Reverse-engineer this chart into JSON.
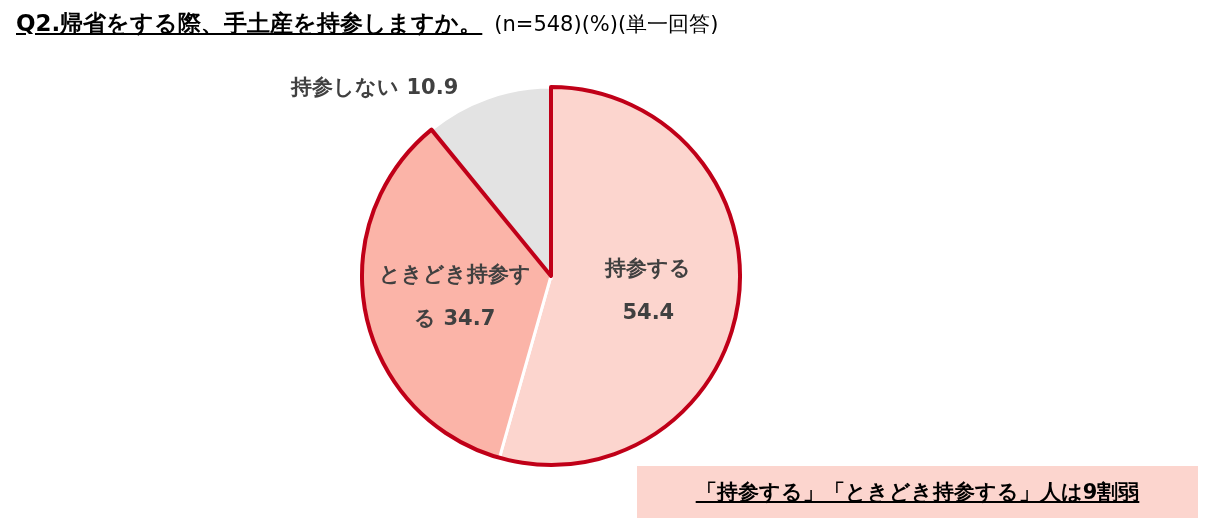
{
  "chart_data": {
    "type": "pie",
    "title": "Q2.帰省をする際、手土産を持参しますか。",
    "subtitle": "(n=548)(%)(単一回答)",
    "categories": [
      "持参する",
      "ときどき持参する",
      "持参しない"
    ],
    "values": [
      54.4,
      34.7,
      10.9
    ],
    "colors": [
      "#fcd5ce",
      "#fbb4a8",
      "#e3e3e3"
    ],
    "data_labels": true,
    "legend": false,
    "annotations": [
      "「持参する」「ときどき持参する」人は9割弱"
    ]
  }
}
